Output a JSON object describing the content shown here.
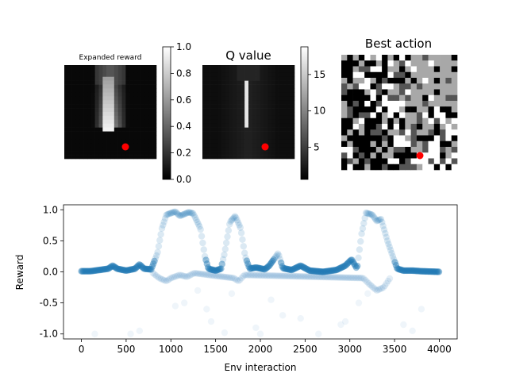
{
  "figure": {
    "panels": [
      {
        "title": "Expanded reward",
        "colorbar_ticks": [
          "0.0",
          "0.2",
          "0.4",
          "0.6",
          "0.8",
          "1.0"
        ],
        "colorbar_range": [
          0,
          1
        ],
        "marker_color": "#ff0000"
      },
      {
        "title": "Q value",
        "colorbar_ticks": [
          "5",
          "10",
          "15"
        ],
        "colorbar_range": [
          0.6,
          18.8
        ],
        "marker_color": "#ff0000"
      },
      {
        "title": "Best action",
        "marker_color": "#ff0000"
      }
    ]
  },
  "chart_data": {
    "type": "scatter",
    "xlabel": "Env interaction",
    "ylabel": "Reward",
    "xlim": [
      -200,
      4200
    ],
    "ylim": [
      -1.08,
      1.08
    ],
    "xticks": [
      0,
      500,
      1000,
      1500,
      2000,
      2500,
      3000,
      3500,
      4000
    ],
    "yticks": [
      -1.0,
      -0.5,
      0.0,
      0.5,
      1.0
    ],
    "color": "#1f77b4",
    "grid": false,
    "trend": [
      [
        0,
        0.01
      ],
      [
        100,
        0.01
      ],
      [
        200,
        0.03
      ],
      [
        300,
        0.05
      ],
      [
        350,
        0.1
      ],
      [
        400,
        0.05
      ],
      [
        500,
        0.02
      ],
      [
        600,
        0.05
      ],
      [
        650,
        0.12
      ],
      [
        700,
        0.05
      ],
      [
        780,
        0.04
      ],
      [
        850,
        0.3
      ],
      [
        900,
        0.7
      ],
      [
        950,
        0.92
      ],
      [
        1050,
        0.97
      ],
      [
        1100,
        0.9
      ],
      [
        1200,
        0.96
      ],
      [
        1250,
        0.94
      ],
      [
        1330,
        0.7
      ],
      [
        1380,
        0.25
      ],
      [
        1420,
        0.05
      ],
      [
        1500,
        0.02
      ],
      [
        1560,
        0.05
      ],
      [
        1600,
        0.3
      ],
      [
        1660,
        0.8
      ],
      [
        1720,
        0.9
      ],
      [
        1780,
        0.7
      ],
      [
        1830,
        0.25
      ],
      [
        1880,
        0.05
      ],
      [
        1950,
        0.07
      ],
      [
        2050,
        0.04
      ],
      [
        2100,
        0.1
      ],
      [
        2200,
        0.3
      ],
      [
        2250,
        0.06
      ],
      [
        2350,
        0.03
      ],
      [
        2450,
        0.1
      ],
      [
        2550,
        0.02
      ],
      [
        2700,
        0.0
      ],
      [
        2850,
        0.03
      ],
      [
        2950,
        0.1
      ],
      [
        3020,
        0.2
      ],
      [
        3080,
        0.05
      ],
      [
        3130,
        0.6
      ],
      [
        3180,
        0.95
      ],
      [
        3250,
        0.92
      ],
      [
        3300,
        0.82
      ],
      [
        3350,
        0.85
      ],
      [
        3420,
        0.5
      ],
      [
        3480,
        0.25
      ],
      [
        3530,
        0.05
      ],
      [
        3600,
        0.02
      ],
      [
        3700,
        0.02
      ],
      [
        3800,
        0.01
      ],
      [
        4000,
        0.0
      ]
    ],
    "dip_trend": [
      [
        800,
        -0.02
      ],
      [
        870,
        -0.1
      ],
      [
        950,
        -0.15
      ],
      [
        1000,
        -0.1
      ],
      [
        1100,
        -0.05
      ],
      [
        1180,
        -0.08
      ],
      [
        1260,
        -0.02
      ],
      [
        1700,
        -0.1
      ],
      [
        1760,
        -0.15
      ],
      [
        1820,
        -0.05
      ],
      [
        3150,
        -0.1
      ],
      [
        3220,
        -0.2
      ],
      [
        3300,
        -0.3
      ],
      [
        3380,
        -0.25
      ],
      [
        3450,
        -0.1
      ]
    ],
    "outliers": [
      [
        150,
        -1.0
      ],
      [
        550,
        -1.0
      ],
      [
        650,
        -0.95
      ],
      [
        1050,
        -0.55
      ],
      [
        1150,
        -0.5
      ],
      [
        1300,
        -0.3
      ],
      [
        1400,
        -0.6
      ],
      [
        1450,
        -0.8
      ],
      [
        1600,
        -0.98
      ],
      [
        1680,
        -0.35
      ],
      [
        1950,
        -0.9
      ],
      [
        2000,
        -1.0
      ],
      [
        2120,
        -0.45
      ],
      [
        2250,
        -0.7
      ],
      [
        2450,
        -0.75
      ],
      [
        2650,
        -1.0
      ],
      [
        2900,
        -0.85
      ],
      [
        2950,
        -0.8
      ],
      [
        3100,
        -0.5
      ],
      [
        3200,
        -0.35
      ],
      [
        3600,
        -0.85
      ],
      [
        3700,
        -0.95
      ],
      [
        3800,
        -0.6
      ]
    ]
  }
}
